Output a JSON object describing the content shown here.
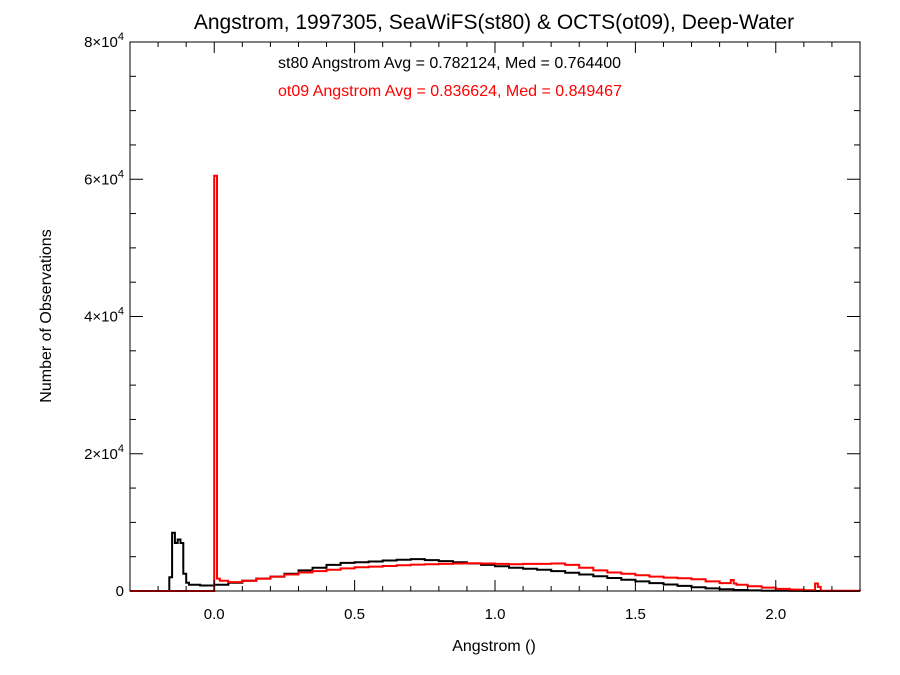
{
  "chart_data": {
    "type": "line",
    "title": "Angstrom, 1997305, SeaWiFS(st80) & OCTS(ot09), Deep-Water",
    "xlabel": "Angstrom ()",
    "ylabel": "Number of Observations",
    "xlim": [
      -0.3,
      2.3
    ],
    "ylim": [
      0,
      80000
    ],
    "xticks": [
      {
        "value": 0.0,
        "label": "0.0"
      },
      {
        "value": 0.5,
        "label": "0.5"
      },
      {
        "value": 1.0,
        "label": "1.0"
      },
      {
        "value": 1.5,
        "label": "1.5"
      },
      {
        "value": 2.0,
        "label": "2.0"
      }
    ],
    "yticks": [
      {
        "value": 0,
        "mant": "0",
        "exp": ""
      },
      {
        "value": 20000,
        "mant": "2×10",
        "exp": "4"
      },
      {
        "value": 40000,
        "mant": "4×10",
        "exp": "4"
      },
      {
        "value": 60000,
        "mant": "6×10",
        "exp": "4"
      },
      {
        "value": 80000,
        "mant": "8×10",
        "exp": "4"
      }
    ],
    "annotations": [
      {
        "text": "st80 Angstrom Avg = 0.782124, Med = 0.764400",
        "color": "#000000"
      },
      {
        "text": "ot09 Angstrom Avg = 0.836624, Med = 0.849467",
        "color": "#ff0000"
      }
    ],
    "series": [
      {
        "color": "#000000",
        "step": true,
        "x": [
          -0.3,
          -0.17,
          -0.16,
          -0.15,
          -0.14,
          -0.13,
          -0.12,
          -0.11,
          -0.1,
          -0.09,
          -0.05,
          0.0,
          0.05,
          0.1,
          0.15,
          0.2,
          0.25,
          0.3,
          0.35,
          0.4,
          0.45,
          0.5,
          0.55,
          0.6,
          0.65,
          0.7,
          0.75,
          0.8,
          0.85,
          0.9,
          0.95,
          1.0,
          1.05,
          1.1,
          1.15,
          1.2,
          1.25,
          1.3,
          1.35,
          1.4,
          1.45,
          1.5,
          1.55,
          1.6,
          1.65,
          1.7,
          1.75,
          1.8,
          1.85,
          1.9,
          1.95,
          2.0,
          2.05,
          2.1,
          2.15,
          2.3
        ],
        "y": [
          0,
          0,
          2000,
          8500,
          7000,
          7500,
          7000,
          2500,
          1200,
          900,
          800,
          900,
          1200,
          1500,
          1800,
          2100,
          2500,
          3000,
          3400,
          3800,
          4100,
          4200,
          4300,
          4450,
          4550,
          4650,
          4500,
          4350,
          4200,
          4000,
          3800,
          3600,
          3400,
          3250,
          3100,
          2900,
          2650,
          2400,
          2150,
          1900,
          1650,
          1400,
          1150,
          950,
          750,
          550,
          380,
          250,
          150,
          90,
          50,
          25,
          10,
          5,
          0,
          0
        ]
      },
      {
        "color": "#ff0000",
        "step": true,
        "x": [
          -0.3,
          0.0,
          0.01,
          0.02,
          0.05,
          0.1,
          0.15,
          0.2,
          0.25,
          0.3,
          0.35,
          0.4,
          0.45,
          0.5,
          0.55,
          0.6,
          0.65,
          0.7,
          0.75,
          0.8,
          0.85,
          0.9,
          0.95,
          1.0,
          1.05,
          1.1,
          1.15,
          1.2,
          1.25,
          1.3,
          1.35,
          1.4,
          1.45,
          1.5,
          1.55,
          1.6,
          1.65,
          1.7,
          1.75,
          1.8,
          1.84,
          1.85,
          1.86,
          1.9,
          1.95,
          2.0,
          2.05,
          2.1,
          2.14,
          2.15,
          2.16,
          2.3
        ],
        "y": [
          0,
          60500,
          1800,
          1500,
          1300,
          1500,
          1800,
          2100,
          2400,
          2700,
          2900,
          3100,
          3300,
          3450,
          3550,
          3650,
          3750,
          3850,
          3900,
          3950,
          4000,
          4050,
          4000,
          3950,
          3900,
          3950,
          3950,
          4000,
          3800,
          3400,
          3000,
          2700,
          2500,
          2300,
          2100,
          1950,
          1850,
          1700,
          1400,
          1150,
          1600,
          1100,
          900,
          700,
          500,
          300,
          200,
          100,
          1100,
          600,
          50,
          0
        ]
      }
    ]
  }
}
